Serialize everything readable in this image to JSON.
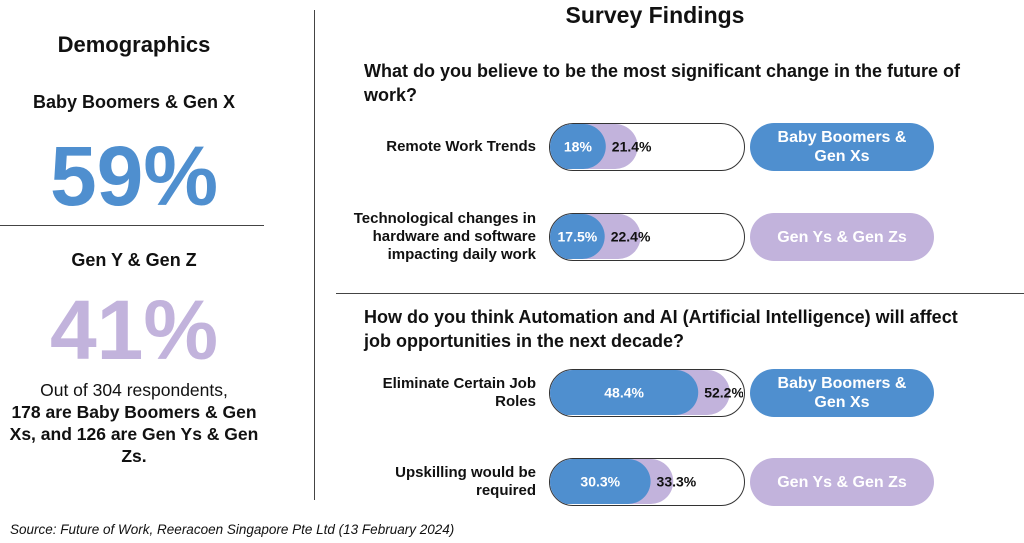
{
  "colors": {
    "boomers": "#4f8fcf",
    "genz": "#c2b3dc",
    "outline": "#333333"
  },
  "demographics": {
    "title": "Demographics",
    "group1_label": "Baby Boomers & Gen X",
    "group1_pct": "59%",
    "group2_label": "Gen Y & Gen Z",
    "group2_pct": "41%",
    "summary_plain": "Out of 304 respondents,",
    "summary_bold": "178 are Baby Boomers & Gen Xs, and 126 are Gen Ys & Gen Zs."
  },
  "survey": {
    "title": "Survey Findings",
    "q1": "What do you believe to be the most significant change in the future of work?",
    "q2": "How do you think Automation and AI (Artificial Intelligence) will affect job opportunities in the next decade?"
  },
  "chart_data": {
    "type": "bar",
    "categories": [
      "Remote Work Trends",
      "Technological changes in hardware and software impacting daily work",
      "Eliminate Certain Job Roles",
      "Upskilling would be required"
    ],
    "series": [
      {
        "values": [
          18,
          17.5,
          48.4,
          30.3
        ],
        "labels": [
          "18%",
          "17.5%",
          "48.4%",
          "30.3%"
        ]
      },
      {
        "values": [
          21.4,
          22.4,
          52.2,
          33.3
        ],
        "labels": [
          "21.4%",
          "22.4%",
          "52.2%",
          "33.3%"
        ]
      }
    ],
    "badges": [
      "Baby Boomers & Gen Xs",
      "Gen Ys & Gen Zs",
      "Baby Boomers & Gen Xs",
      "Gen Ys & Gen Zs"
    ],
    "ylim": [
      0,
      100
    ]
  },
  "source": "Source: Future of Work, Reeracoen Singapore Pte Ltd (13 February 2024)"
}
